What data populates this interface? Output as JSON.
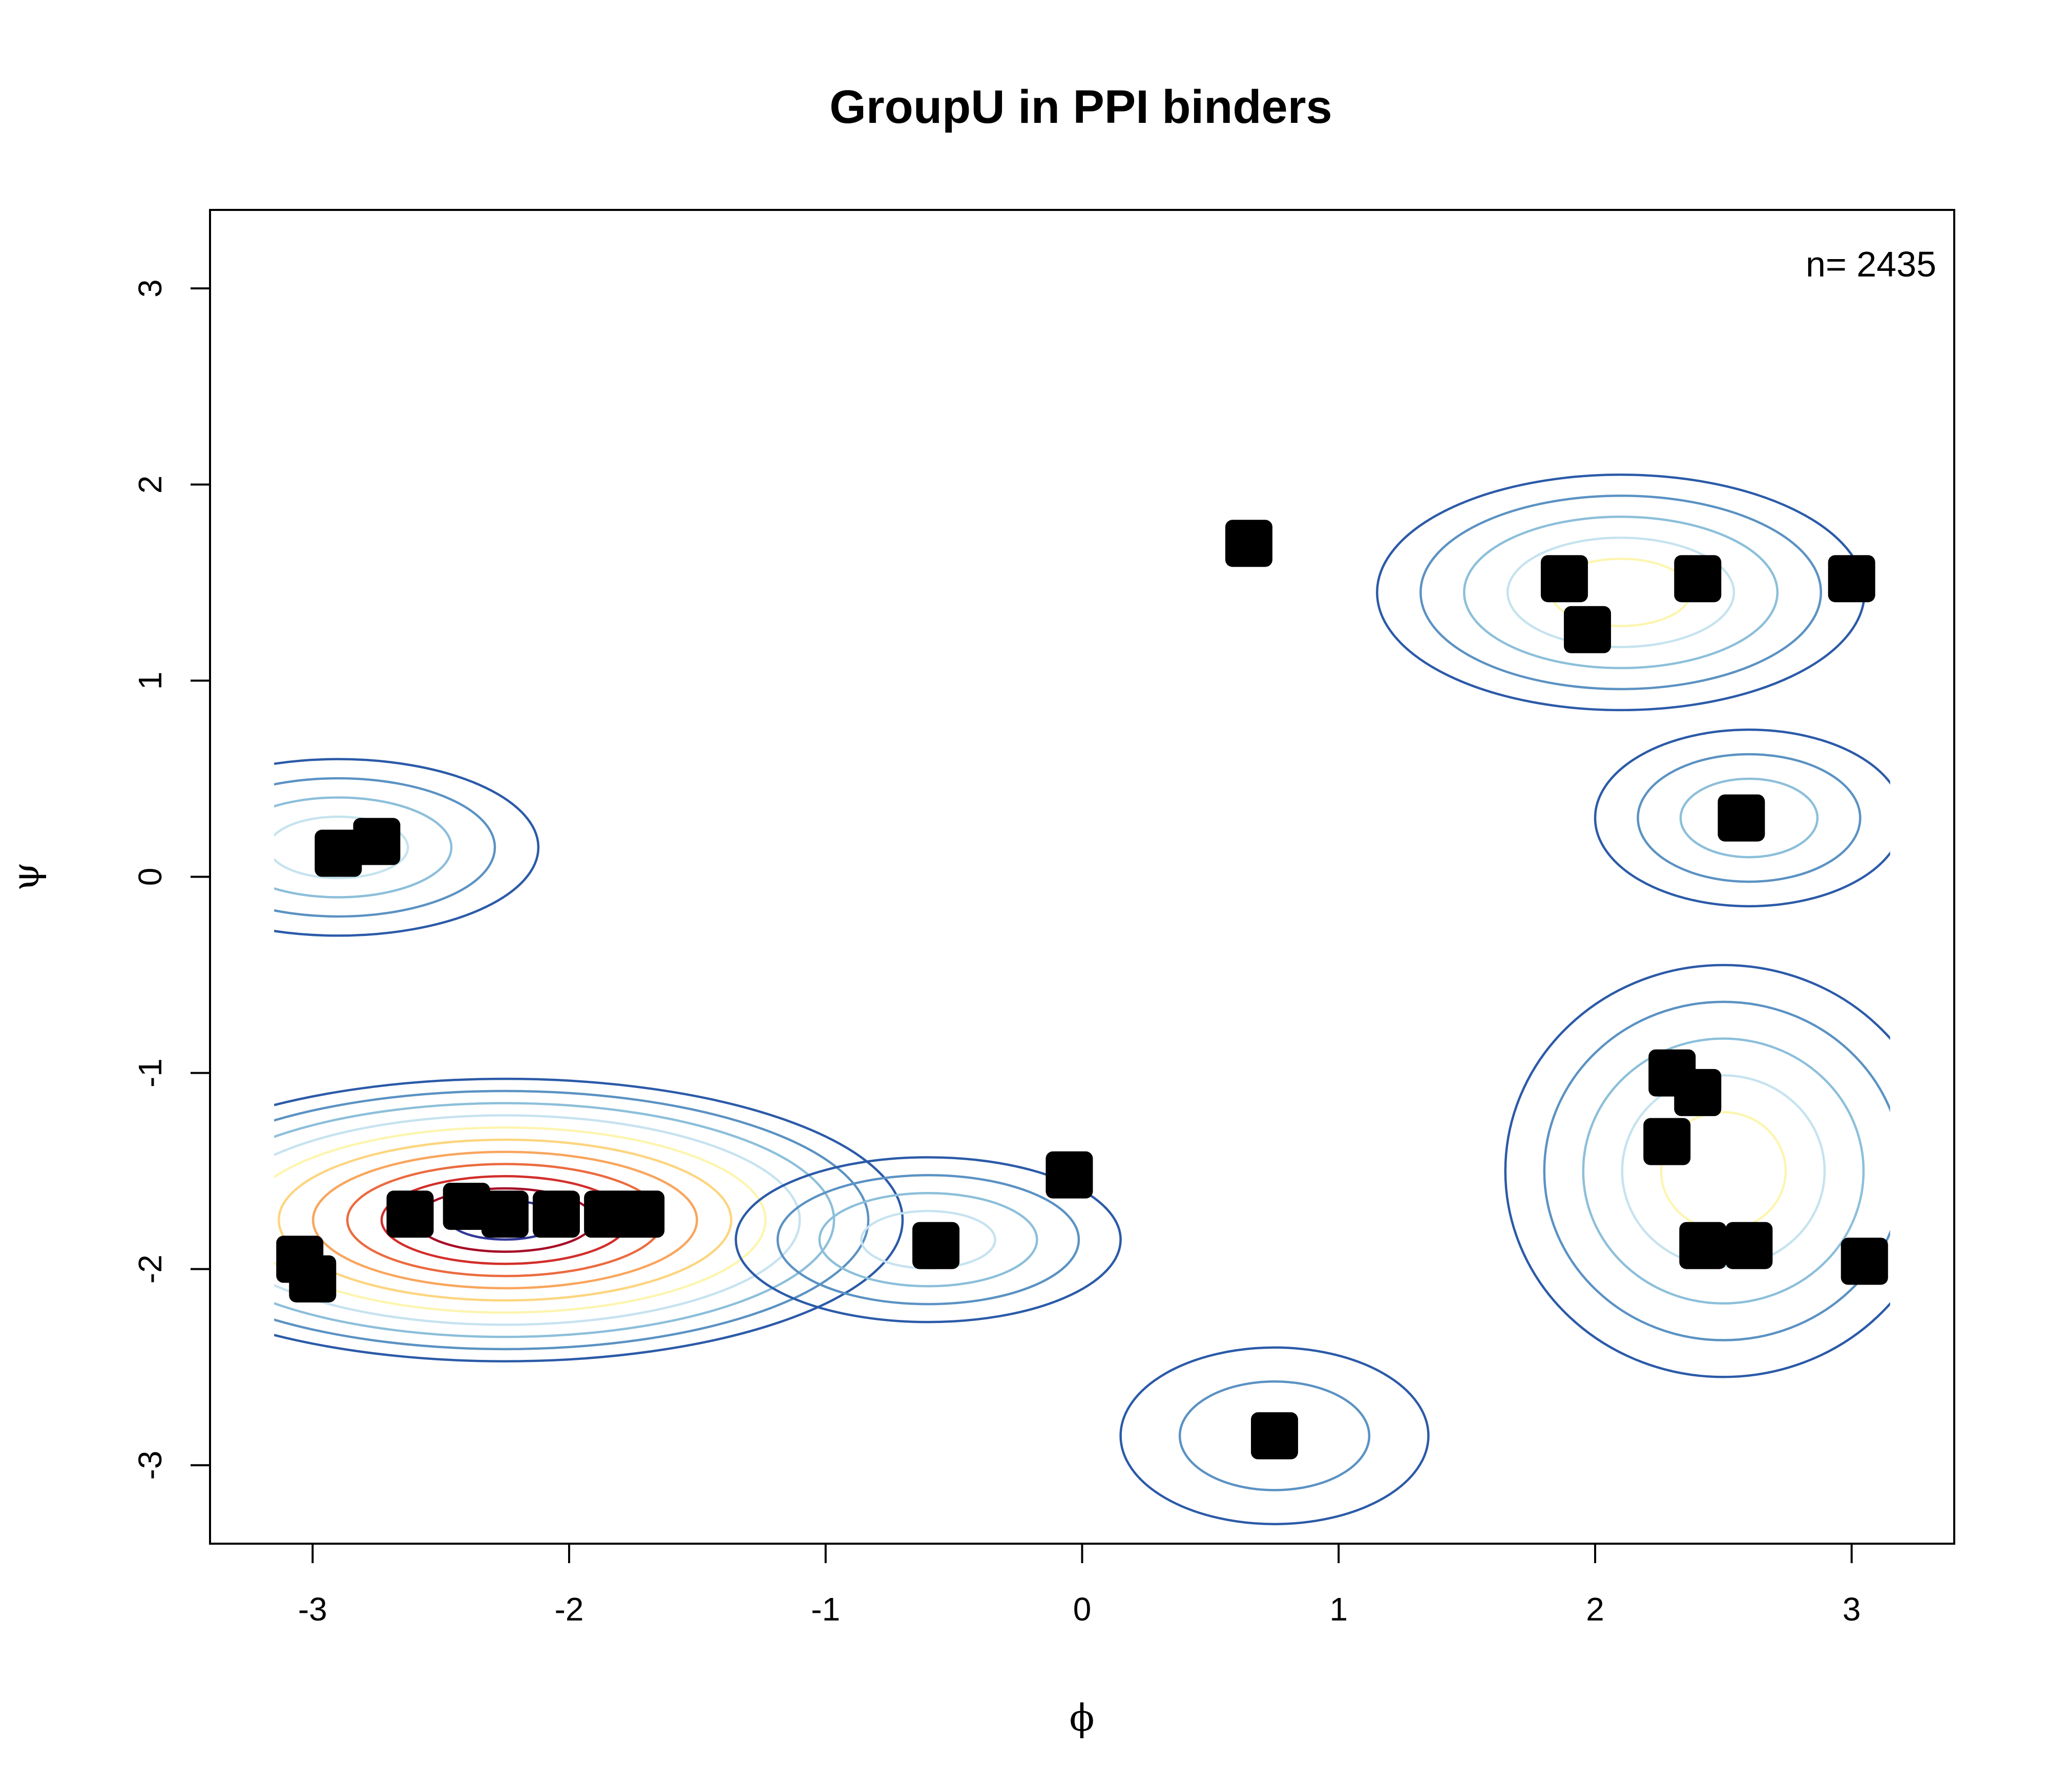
{
  "chart_data": {
    "type": "contour",
    "title": "GroupU  in PPI binders",
    "xlabel": "ϕ",
    "ylabel": "ψ",
    "xlim": [
      -3.4,
      3.4
    ],
    "ylim": [
      -3.4,
      3.4
    ],
    "xticks": [
      -3,
      -2,
      -1,
      0,
      1,
      2,
      3
    ],
    "yticks": [
      -3,
      -2,
      -1,
      0,
      1,
      2,
      3
    ],
    "xtick_labels": [
      "-3",
      "-2",
      "-1",
      "0",
      "1",
      "2",
      "3"
    ],
    "ytick_labels": [
      "-3",
      "-2",
      "-1",
      "0",
      "1",
      "2",
      "3"
    ],
    "annotation": "n= 2435",
    "grid": false,
    "contour_colors": [
      "#2b5aa8",
      "#5b92c3",
      "#8cbfda",
      "#c6e3ef",
      "#fdf5b0",
      "#fdd57f",
      "#f9a55c",
      "#ec6a3f",
      "#d22e2a",
      "#a60b26",
      "#313695"
    ],
    "peaks": [
      {
        "phi": -2.25,
        "psi": -1.75,
        "levels": 11
      },
      {
        "phi": -2.9,
        "psi": 0.15,
        "levels": 4
      },
      {
        "phi": 2.1,
        "psi": 1.45,
        "levels": 5
      },
      {
        "phi": 2.5,
        "psi": -1.5,
        "levels": 5
      },
      {
        "phi": 2.6,
        "psi": 0.3,
        "levels": 3
      },
      {
        "phi": -0.6,
        "psi": -1.85,
        "levels": 4
      },
      {
        "phi": 0.75,
        "psi": -2.85,
        "levels": 2
      }
    ],
    "points": [
      {
        "phi": -2.62,
        "psi": -1.72
      },
      {
        "phi": -2.4,
        "psi": -1.68
      },
      {
        "phi": -2.25,
        "psi": -1.72
      },
      {
        "phi": -2.05,
        "psi": -1.72
      },
      {
        "phi": -1.85,
        "psi": -1.72
      },
      {
        "phi": -1.72,
        "psi": -1.72
      },
      {
        "phi": -3.05,
        "psi": -1.95
      },
      {
        "phi": -3.0,
        "psi": -2.05
      },
      {
        "phi": -2.9,
        "psi": 0.12
      },
      {
        "phi": -2.75,
        "psi": 0.18
      },
      {
        "phi": -0.57,
        "psi": -1.88
      },
      {
        "phi": -0.05,
        "psi": -1.52
      },
      {
        "phi": 0.65,
        "psi": 1.7
      },
      {
        "phi": 0.75,
        "psi": -2.85
      },
      {
        "phi": 1.88,
        "psi": 1.52
      },
      {
        "phi": 1.97,
        "psi": 1.26
      },
      {
        "phi": 2.4,
        "psi": 1.52
      },
      {
        "phi": 3.0,
        "psi": 1.52
      },
      {
        "phi": 2.57,
        "psi": 0.3
      },
      {
        "phi": 2.3,
        "psi": -1.0
      },
      {
        "phi": 2.4,
        "psi": -1.1
      },
      {
        "phi": 2.28,
        "psi": -1.35
      },
      {
        "phi": 2.42,
        "psi": -1.88
      },
      {
        "phi": 2.6,
        "psi": -1.88
      },
      {
        "phi": 3.05,
        "psi": -1.96
      }
    ]
  }
}
